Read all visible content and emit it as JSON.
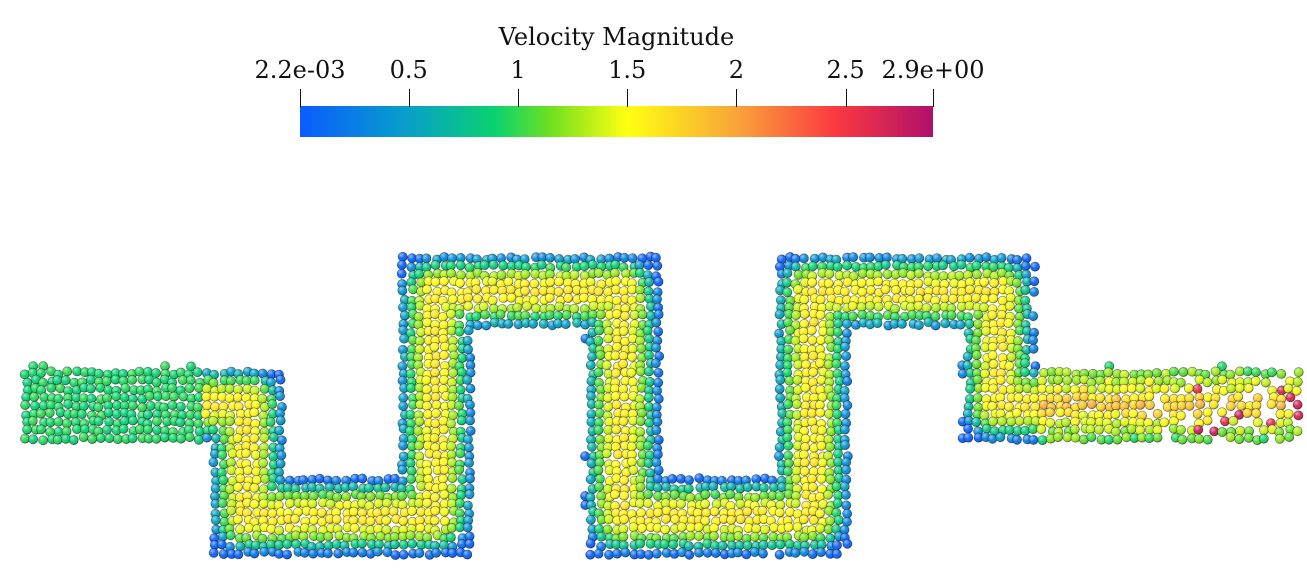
{
  "legend": {
    "title": "Velocity Magnitude",
    "min_label": "2.2e-03",
    "max_label": "2.9e+00",
    "ticks": [
      {
        "label": "2.2e-03",
        "value": 0.0022
      },
      {
        "label": "0.5",
        "value": 0.5
      },
      {
        "label": "1",
        "value": 1.0
      },
      {
        "label": "1.5",
        "value": 1.5
      },
      {
        "label": "2",
        "value": 2.0
      },
      {
        "label": "2.5",
        "value": 2.5
      },
      {
        "label": "2.9e+00",
        "value": 2.9
      }
    ],
    "range": [
      0.0022,
      2.9
    ],
    "colormap": [
      {
        "value": 0.0022,
        "color": "#0a5cff"
      },
      {
        "value": 0.5,
        "color": "#08a0c8"
      },
      {
        "value": 0.9,
        "color": "#0ad36e"
      },
      {
        "value": 1.15,
        "color": "#70e020"
      },
      {
        "value": 1.5,
        "color": "#ffff10"
      },
      {
        "value": 2.0,
        "color": "#f9a43a"
      },
      {
        "value": 2.45,
        "color": "#fb3a40"
      },
      {
        "value": 2.9,
        "color": "#b0106a"
      }
    ]
  },
  "scene": {
    "description_type": "particle-flow-visualization",
    "channel": "serpentine-channel"
  }
}
